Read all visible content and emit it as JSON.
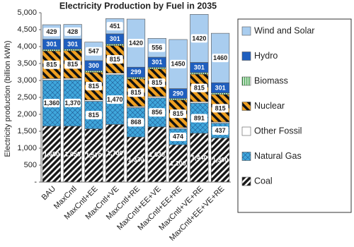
{
  "chart_data": {
    "type": "stacked_bar",
    "title": "Electricity Production by Fuel in 2035",
    "y_label": "Electricity production (billion kWh)",
    "categories": [
      "BAU",
      "MaxCntl",
      "MaxCntl+EE",
      "MaxCntl+VE",
      "MaxCntl+RE",
      "MaxCntl+EE+VE",
      "MaxCntl+EE+RE",
      "MaxCntl+VE+RE",
      "MaxCntl+EE+VE+RE"
    ],
    "ylim": [
      0,
      5000
    ],
    "yticks": [
      {
        "value": 0,
        "label": "-"
      },
      500,
      {
        "value": 1000,
        "label": "1,000"
      },
      {
        "value": 1500,
        "label": "1,500"
      },
      {
        "value": 2000,
        "label": "2,000"
      },
      {
        "value": 2500,
        "label": "2,500"
      },
      {
        "value": 3000,
        "label": "3,000"
      },
      {
        "value": 3500,
        "label": "3,500"
      },
      {
        "value": 4000,
        "label": "4,000"
      },
      {
        "value": 4500,
        "label": "4,500"
      },
      {
        "value": 5000,
        "label": "5,000"
      }
    ],
    "series": [
      {
        "name": "Coal",
        "color": "#1a1a1a",
        "data_labels": true,
        "values": [
          1650,
          1650,
          1570,
          1700,
          1330,
          1630,
          1100,
          1440,
          1300
        ],
        "value_labels": [
          "1,650",
          "1,650",
          "1,570",
          "1,700",
          "1,330",
          "1,630",
          "1,100",
          "1,440",
          "1,300"
        ]
      },
      {
        "name": "Natural Gas",
        "color": "#3fa7dc",
        "data_labels": true,
        "values": [
          1360,
          1370,
          815,
          1470,
          868,
          856,
          474,
          891,
          437
        ],
        "value_labels": [
          "1,360",
          "1,370",
          "815",
          "1,470",
          "868",
          "856",
          "474",
          "891",
          "437"
        ]
      },
      {
        "name": "Other Fossil",
        "color": "#ffffff",
        "data_labels": false,
        "values": [
          45,
          45,
          40,
          45,
          35,
          40,
          35,
          40,
          35
        ]
      },
      {
        "name": "Nuclear",
        "color": "#f0a020",
        "data_labels": true,
        "values": [
          815,
          815,
          815,
          815,
          815,
          815,
          815,
          815,
          815
        ]
      },
      {
        "name": "Biomass",
        "color": "#2e9a3a",
        "data_labels": false,
        "values": [
          45,
          45,
          45,
          45,
          45,
          45,
          45,
          45,
          45
        ]
      },
      {
        "name": "Hydro",
        "color": "#1f5fbf",
        "data_labels": true,
        "values": [
          301,
          301,
          300,
          301,
          299,
          301,
          290,
          301,
          301
        ]
      },
      {
        "name": "Wind and Solar",
        "color": "#a9cdef",
        "data_labels": true,
        "values": [
          429,
          428,
          547,
          451,
          1420,
          556,
          1450,
          1420,
          1460
        ]
      }
    ]
  }
}
